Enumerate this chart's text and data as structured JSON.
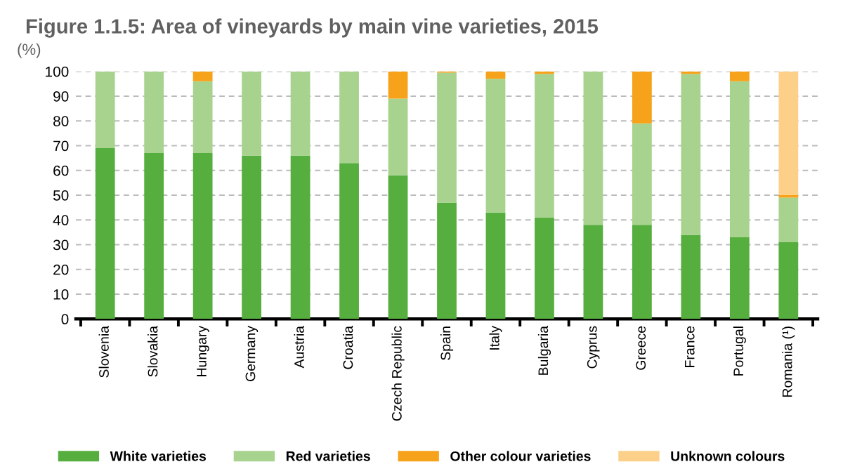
{
  "chart_data": {
    "type": "bar",
    "stacked": true,
    "title": "Figure 1.1.5: Area of vineyards by main vine varieties, 2015",
    "ylabel": "(%)",
    "categories": [
      "Slovenia",
      "Slovakia",
      "Hungary",
      "Germany",
      "Austria",
      "Croatia",
      "Czech Republic",
      "Spain",
      "Italy",
      "Bulgaria",
      "Cyprus",
      "Greece",
      "France",
      "Portugal",
      "Romania (¹)"
    ],
    "series": [
      {
        "name": "White varieties",
        "color": "#56ae3f",
        "values": [
          69,
          67,
          67,
          66,
          66,
          63,
          58,
          47,
          43,
          41,
          38,
          38,
          34,
          33,
          31
        ]
      },
      {
        "name": "Red varieties",
        "color": "#a8d38f",
        "values": [
          31,
          33,
          29,
          34,
          34,
          37,
          31,
          52.5,
          54,
          58,
          62,
          41,
          65,
          63,
          18
        ]
      },
      {
        "name": "Other colour varieties",
        "color": "#f7a21b",
        "values": [
          0,
          0,
          4,
          0,
          0,
          0,
          11,
          0.5,
          3,
          1,
          0,
          21,
          1,
          4,
          1
        ]
      },
      {
        "name": "Unknown colours",
        "color": "#fdd08a",
        "values": [
          0,
          0,
          0,
          0,
          0,
          0,
          0,
          0,
          0,
          0,
          0,
          0,
          0,
          0,
          50
        ]
      }
    ],
    "ylim": [
      0,
      100
    ],
    "yticks": [
      0,
      10,
      20,
      30,
      40,
      50,
      60,
      70,
      80,
      90,
      100
    ],
    "grid": "y",
    "legend": "bottom"
  }
}
